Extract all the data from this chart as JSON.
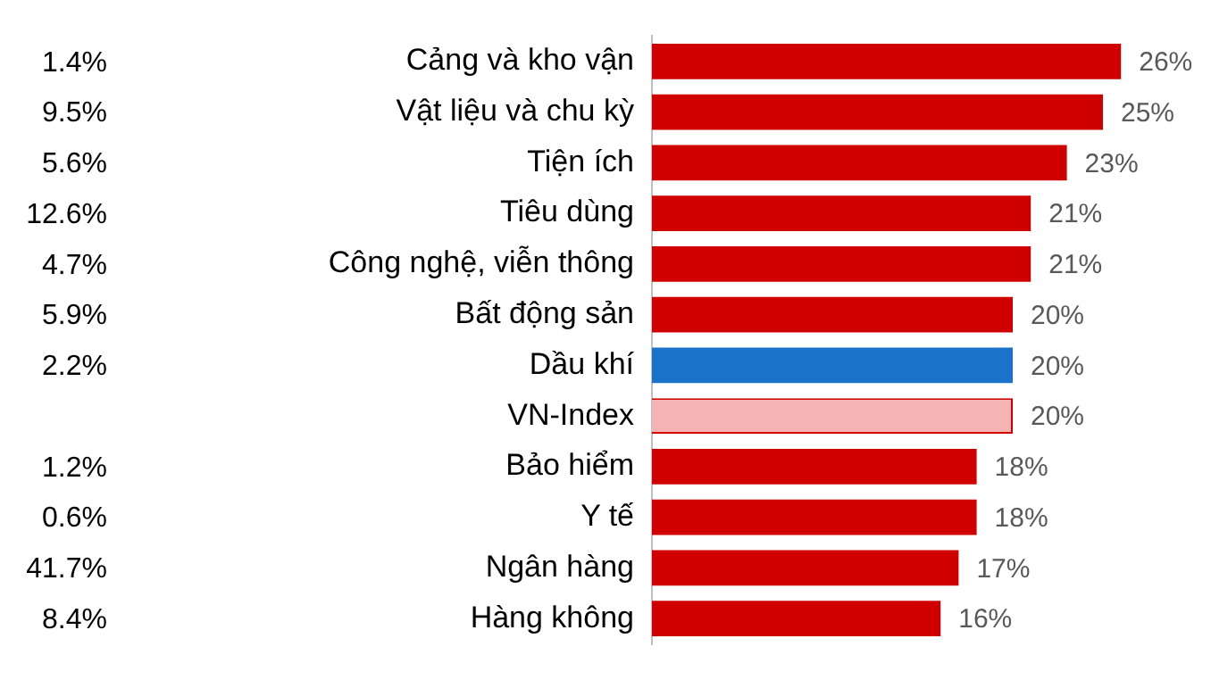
{
  "chart_data": {
    "type": "bar",
    "orientation": "horizontal",
    "categories": [
      "Cảng và kho vận",
      "Vật liệu và chu kỳ",
      "Tiện ích",
      "Tiêu dùng",
      "Công nghệ, viễn thông",
      "Bất động sản",
      "Dầu khí",
      "VN-Index",
      "Bảo hiểm",
      "Y tế",
      "Ngân hàng",
      "Hàng không"
    ],
    "values": [
      26,
      25,
      23,
      21,
      21,
      20,
      20,
      20,
      18,
      18,
      17,
      16
    ],
    "value_labels": [
      "26%",
      "25%",
      "23%",
      "21%",
      "21%",
      "20%",
      "20%",
      "20%",
      "18%",
      "18%",
      "17%",
      "16%"
    ],
    "colors": [
      "#d00000",
      "#d00000",
      "#d00000",
      "#d00000",
      "#d00000",
      "#d00000",
      "#1a73c8",
      "#f6b3b3",
      "#d00000",
      "#d00000",
      "#d00000",
      "#d00000"
    ],
    "annotations": [
      "1.4%",
      "9.5%",
      "5.6%",
      "12.6%",
      "4.7%",
      "5.9%",
      "2.2%",
      "1.2%",
      "0.6%",
      "41.7%",
      "8.4%"
    ],
    "legend": false
  }
}
